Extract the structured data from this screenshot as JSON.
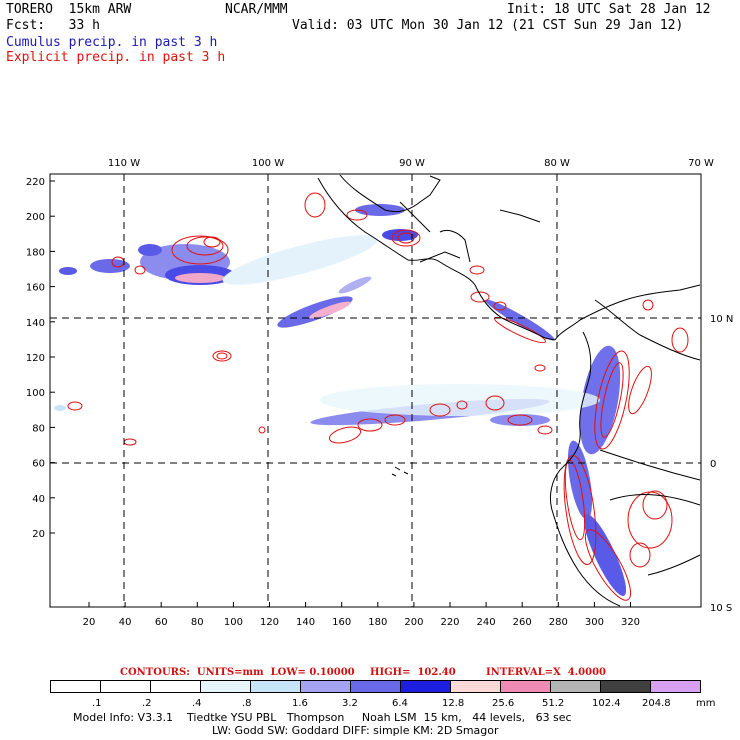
{
  "header": {
    "model": "TORERO  15km ARW",
    "org": "NCAR/MMM",
    "init": "Init: 18 UTC Sat 28 Jan 12",
    "fcst": "Fcst:   33 h",
    "valid": "Valid: 03 UTC Mon 30 Jan 12 (21 CST Sun 29 Jan 12)",
    "legend_cumulus": "Cumulus precip. in past 3 h",
    "legend_explicit": "Explicit precip. in past 3 h"
  },
  "colors": {
    "cumulus": "#1a1ab4",
    "explicit": "#e01010",
    "grid": "#000000"
  },
  "map": {
    "top_lon_labels": [
      "110 W",
      "100 W",
      "90 W",
      "80 W",
      "70 W"
    ],
    "right_lat_labels": [
      "10 N",
      "0",
      "10 S"
    ],
    "y_ticks": [
      "220",
      "200",
      "180",
      "160",
      "140",
      "120",
      "100",
      "80",
      "60",
      "40",
      "20"
    ],
    "x_ticks": [
      "20",
      "40",
      "60",
      "80",
      "100",
      "120",
      "140",
      "160",
      "180",
      "200",
      "220",
      "240",
      "260",
      "280",
      "300",
      "320"
    ]
  },
  "contours": {
    "units": "CONTOURS:  UNITS=mm  LOW= 0.10000",
    "high": "HIGH=  102.40",
    "interval": "INTERVAL=X  4.0000"
  },
  "colorbar": {
    "labels": [
      ".1",
      ".2",
      ".4",
      ".8",
      "1.6",
      "3.2",
      "6.4",
      "12.8",
      "25.6",
      "51.2",
      "102.4",
      "204.8"
    ],
    "unit": "mm",
    "colors": [
      "#ffffff",
      "#ffffff",
      "#ffffff",
      "#e8f6fb",
      "#c8e4f8",
      "#a4a4f0",
      "#6a6ae8",
      "#1e1ee0",
      "#ffd8d8",
      "#f08cb4",
      "#b4b4b4",
      "#404040",
      "#d8a0f0"
    ]
  },
  "footer": {
    "line1": "Model Info: V3.3.1    Tiedtke YSU PBL   Thompson     Noah LSM  15 km,   44 levels,   63 sec",
    "line2": "LW: Godd SW: Goddard DIFF: simple KM: 2D Smagor"
  }
}
